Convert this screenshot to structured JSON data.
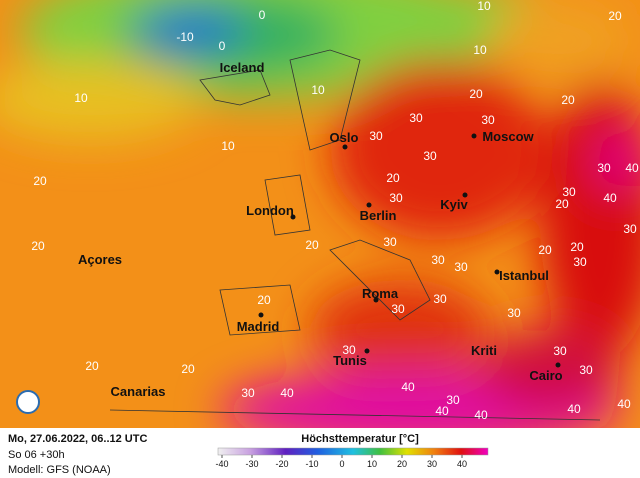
{
  "map": {
    "cities": [
      {
        "name": "Iceland"
      },
      {
        "name": "Oslo"
      },
      {
        "name": "Moscow"
      },
      {
        "name": "London"
      },
      {
        "name": "Berlin"
      },
      {
        "name": "Kyiv"
      },
      {
        "name": "Açores"
      },
      {
        "name": "Istanbul"
      },
      {
        "name": "Roma"
      },
      {
        "name": "Madrid"
      },
      {
        "name": "Tunis"
      },
      {
        "name": "Kriti"
      },
      {
        "name": "Cairo"
      },
      {
        "name": "Canarias"
      }
    ],
    "contours": [
      0,
      -10,
      0,
      10,
      10,
      20,
      10,
      10,
      20,
      20,
      10,
      30,
      30,
      30,
      20,
      30,
      30,
      40,
      20,
      30,
      30,
      20,
      40,
      30,
      20,
      20,
      30,
      20,
      20,
      30,
      30,
      30,
      20,
      30,
      30,
      30,
      20,
      20,
      30,
      30,
      30,
      40,
      30,
      40,
      30,
      40,
      40,
      40,
      40
    ]
  },
  "footer": {
    "date": "Mo, 27.06.2022, 06..12 UTC",
    "run": "So 06 +30h",
    "model": "Modell: GFS (NOAA)",
    "legend_title": "Höchsttemperatur [°C]",
    "colorbar_ticks": [
      -40,
      -30,
      -20,
      -10,
      0,
      10,
      20,
      30,
      40
    ]
  }
}
